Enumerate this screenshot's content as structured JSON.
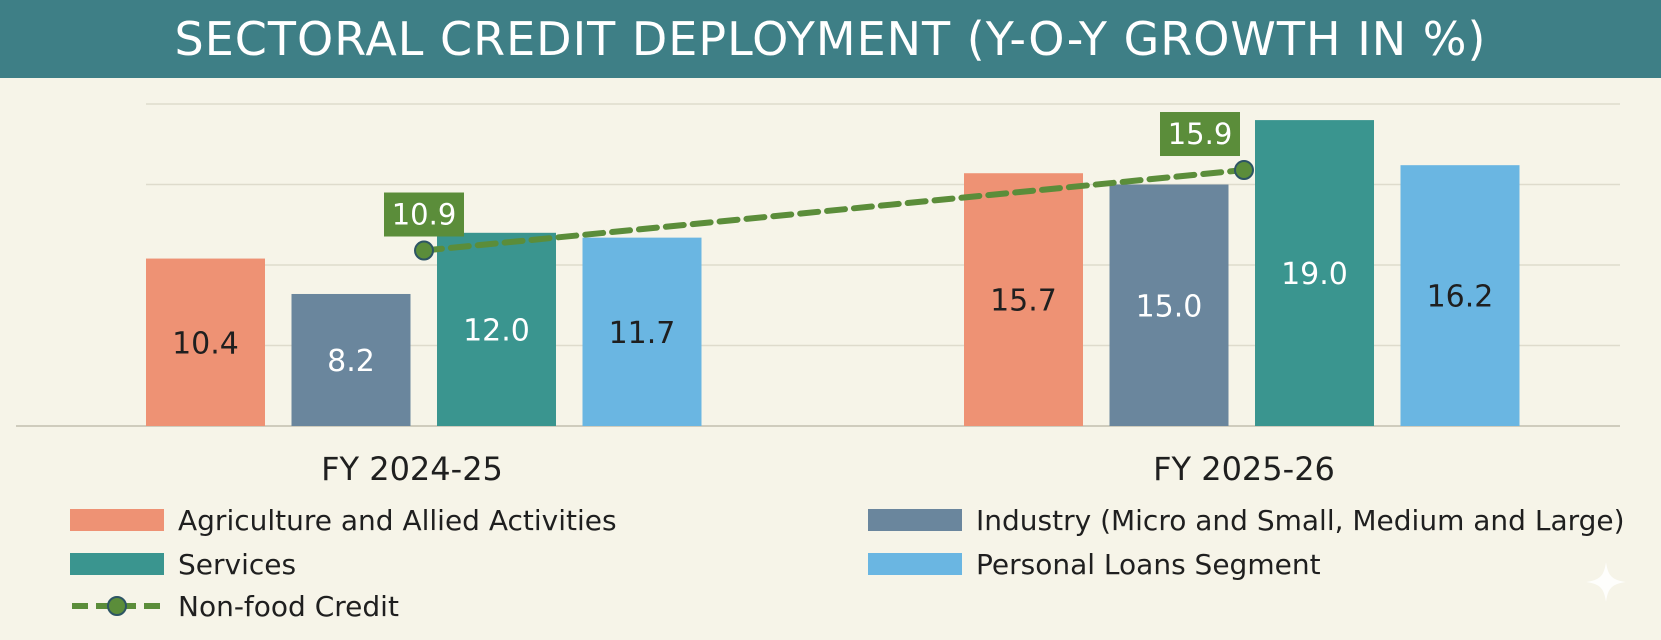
{
  "chart_data": {
    "type": "bar",
    "title": "SECTORAL CREDIT DEPLOYMENT (Y-O-Y GROWTH IN %)",
    "categories": [
      "FY 2024-25",
      "FY 2025-26"
    ],
    "ylim": [
      0,
      25
    ],
    "grid": true,
    "series": [
      {
        "name": "Agriculture and Allied Activities",
        "values": [
          10.4,
          15.7
        ],
        "color": "#ee9274",
        "label_color": "#1f1f1f"
      },
      {
        "name": "Industry (Micro and Small, Medium and Large)",
        "values": [
          8.2,
          15.0
        ],
        "color": "#6a869d",
        "label_color": "#ffffff"
      },
      {
        "name": "Services",
        "values": [
          12.0,
          19.0
        ],
        "color": "#3a958f",
        "label_color": "#ffffff"
      },
      {
        "name": "Personal Loans Segment",
        "values": [
          11.7,
          16.2
        ],
        "color": "#6ab6e2",
        "label_color": "#1f1f1f"
      }
    ],
    "line": {
      "name": "Non-food Credit",
      "values": [
        10.9,
        15.9
      ],
      "color": "#5b8d3a",
      "label_bg": "#5b8d3a"
    },
    "legend_placement": "bottom"
  }
}
